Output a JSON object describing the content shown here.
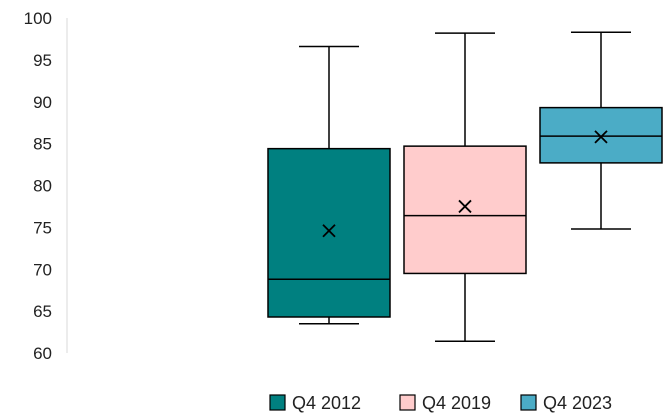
{
  "chart_data": {
    "type": "box",
    "title": "",
    "xlabel": "",
    "ylabel": "",
    "ylim": [
      60,
      100
    ],
    "yticks": [
      60,
      65,
      70,
      75,
      80,
      85,
      90,
      95,
      100
    ],
    "grid": false,
    "legend_position": "bottom-right",
    "series": [
      {
        "name": "Q4 2012",
        "color": "#008080",
        "min": 63.5,
        "q1": 64.3,
        "median": 68.8,
        "q3": 84.4,
        "max": 96.6,
        "mean": 74.6
      },
      {
        "name": "Q4 2019",
        "color": "#FFCCCC",
        "min": 61.4,
        "q1": 69.5,
        "median": 76.4,
        "q3": 84.7,
        "max": 98.2,
        "mean": 77.5
      },
      {
        "name": "Q4 2023",
        "color": "#4BACC6",
        "min": 74.8,
        "q1": 82.7,
        "median": 85.9,
        "q3": 89.3,
        "max": 98.3,
        "mean": 85.8
      }
    ]
  }
}
